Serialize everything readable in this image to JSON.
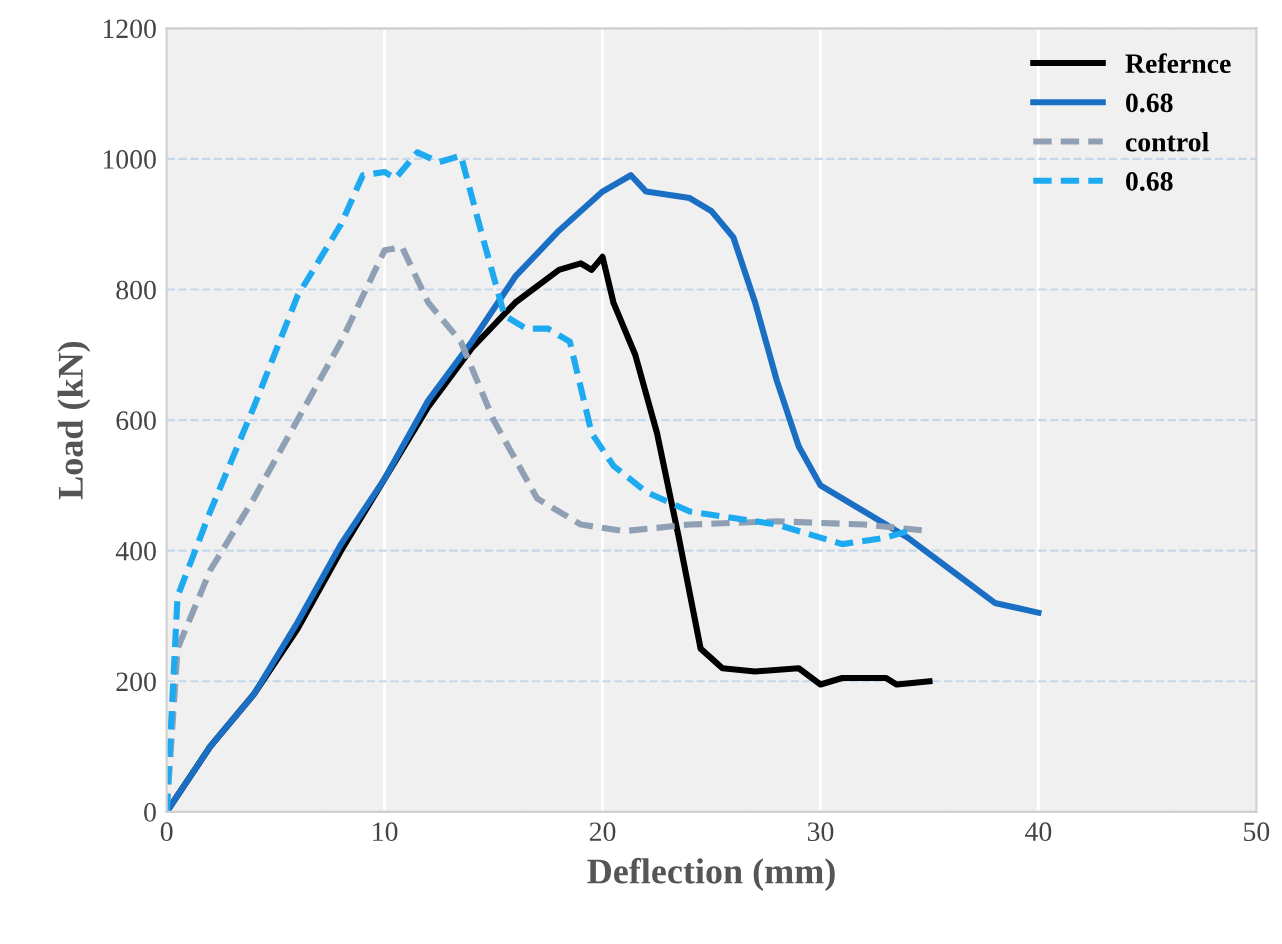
{
  "chart_data": {
    "type": "line",
    "xlabel": "Deflection (mm)",
    "ylabel": "Load (kN)",
    "xlim": [
      0,
      50
    ],
    "xticks": [
      0,
      10,
      20,
      30,
      40,
      50
    ],
    "ylim": [
      0,
      1200
    ],
    "yticks": [
      0,
      200,
      400,
      600,
      800,
      1000,
      1200
    ],
    "grid": true,
    "legend": "top right",
    "marker": "none",
    "series": [
      {
        "name": "Refernce",
        "color": "#000000",
        "line_style": "solid",
        "x": [
          0,
          2,
          4,
          6,
          8,
          10,
          12,
          14,
          16,
          18,
          19,
          19.5,
          20,
          20.5,
          21.5,
          22.5,
          23.5,
          24.5,
          25.5,
          27,
          29,
          30,
          31,
          33,
          33.5,
          35
        ],
        "values": [
          0,
          100,
          180,
          280,
          400,
          510,
          620,
          710,
          780,
          830,
          840,
          830,
          850,
          780,
          700,
          580,
          420,
          250,
          220,
          215,
          220,
          195,
          205,
          205,
          195,
          200
        ]
      },
      {
        "name": "0.68",
        "color": "#1a6fc4",
        "line_style": "solid",
        "x": [
          0,
          2,
          4,
          6,
          8,
          10,
          12,
          14,
          16,
          18,
          20,
          21.3,
          22,
          23,
          24,
          25,
          26,
          27,
          28,
          29,
          30,
          32,
          34,
          36,
          38,
          40
        ],
        "values": [
          0,
          100,
          180,
          290,
          410,
          510,
          630,
          720,
          820,
          890,
          950,
          975,
          950,
          945,
          940,
          920,
          880,
          780,
          660,
          560,
          500,
          460,
          420,
          370,
          320,
          305
        ]
      },
      {
        "name": "control",
        "color": "#8fa0b4",
        "line_style": "dashed",
        "x": [
          0,
          0.5,
          2,
          4,
          6,
          8,
          10,
          10.8,
          12,
          13.5,
          15,
          17,
          19,
          21,
          24,
          28,
          32,
          35
        ],
        "values": [
          0,
          250,
          370,
          480,
          600,
          720,
          860,
          865,
          780,
          720,
          600,
          480,
          440,
          430,
          440,
          445,
          440,
          430
        ]
      },
      {
        "name": "0.68",
        "color": "#1eaaf0",
        "line_style": "dashed",
        "x": [
          0,
          0.5,
          2,
          4,
          6,
          8,
          9,
          10,
          10.5,
          11.5,
          12.5,
          13.5,
          14.5,
          15.5,
          16.5,
          17.5,
          18.5,
          19.5,
          20.5,
          22,
          24,
          26,
          28,
          30,
          31,
          33,
          34
        ],
        "values": [
          0,
          330,
          460,
          620,
          790,
          900,
          975,
          980,
          970,
          1010,
          995,
          1005,
          880,
          760,
          740,
          740,
          720,
          580,
          530,
          490,
          460,
          450,
          440,
          420,
          410,
          420,
          430
        ]
      }
    ]
  }
}
